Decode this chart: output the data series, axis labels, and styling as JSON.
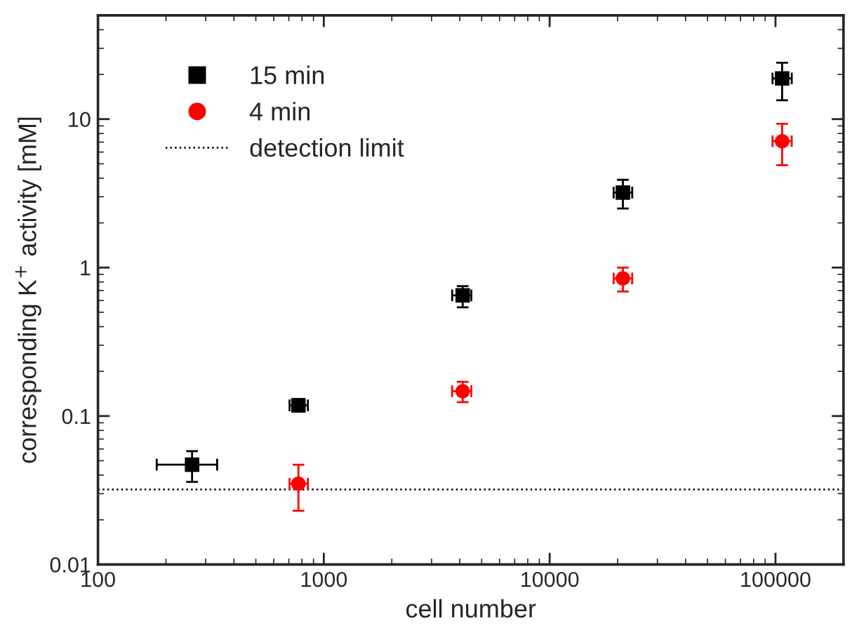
{
  "chart_data": {
    "type": "scatter",
    "xlabel": "cell number",
    "ylabel": "corresponding K$^{+}$ activity [mM]",
    "log": "xy",
    "xlim": [
      100,
      200000
    ],
    "ylim": [
      0.01,
      50
    ],
    "xticks": [
      100,
      1000,
      10000,
      100000
    ],
    "yticks": [
      0.01,
      0.1,
      1,
      10
    ],
    "grid": false,
    "legend": "top left",
    "series": [
      {
        "name": "15 min",
        "color": "#000000",
        "marker": "square",
        "x": [
          261,
          772,
          4120,
          21100,
          107000
        ],
        "values": [
          0.047,
          0.118,
          0.65,
          3.2,
          18.8
        ],
        "errors": [
          [
            0.036,
            0.058
          ],
          [
            0.107,
            0.13
          ],
          [
            0.54,
            0.75
          ],
          [
            2.5,
            3.9
          ],
          [
            13.4,
            24
          ]
        ],
        "xerrors": [
          [
            182,
            337
          ],
          [
            705,
            850
          ],
          [
            3700,
            4500
          ],
          [
            19200,
            23200
          ],
          [
            97000,
            118000
          ]
        ]
      },
      {
        "name": "4 min",
        "color": "#ff0000",
        "marker": "circle",
        "x": [
          772,
          4120,
          21100,
          107000
        ],
        "values": [
          0.035,
          0.147,
          0.845,
          7.1
        ],
        "errors": [
          [
            0.023,
            0.047
          ],
          [
            0.124,
            0.17
          ],
          [
            0.69,
            1.0
          ],
          [
            4.9,
            9.3
          ]
        ],
        "xerrors": [
          [
            705,
            850
          ],
          [
            3700,
            4500
          ],
          [
            19200,
            23200
          ],
          [
            97000,
            118000
          ]
        ]
      }
    ],
    "ref_lines": [
      {
        "axis": "y",
        "value": 0.032,
        "label": "detection limit",
        "color": "#000000",
        "line_style": "dotted"
      }
    ]
  }
}
